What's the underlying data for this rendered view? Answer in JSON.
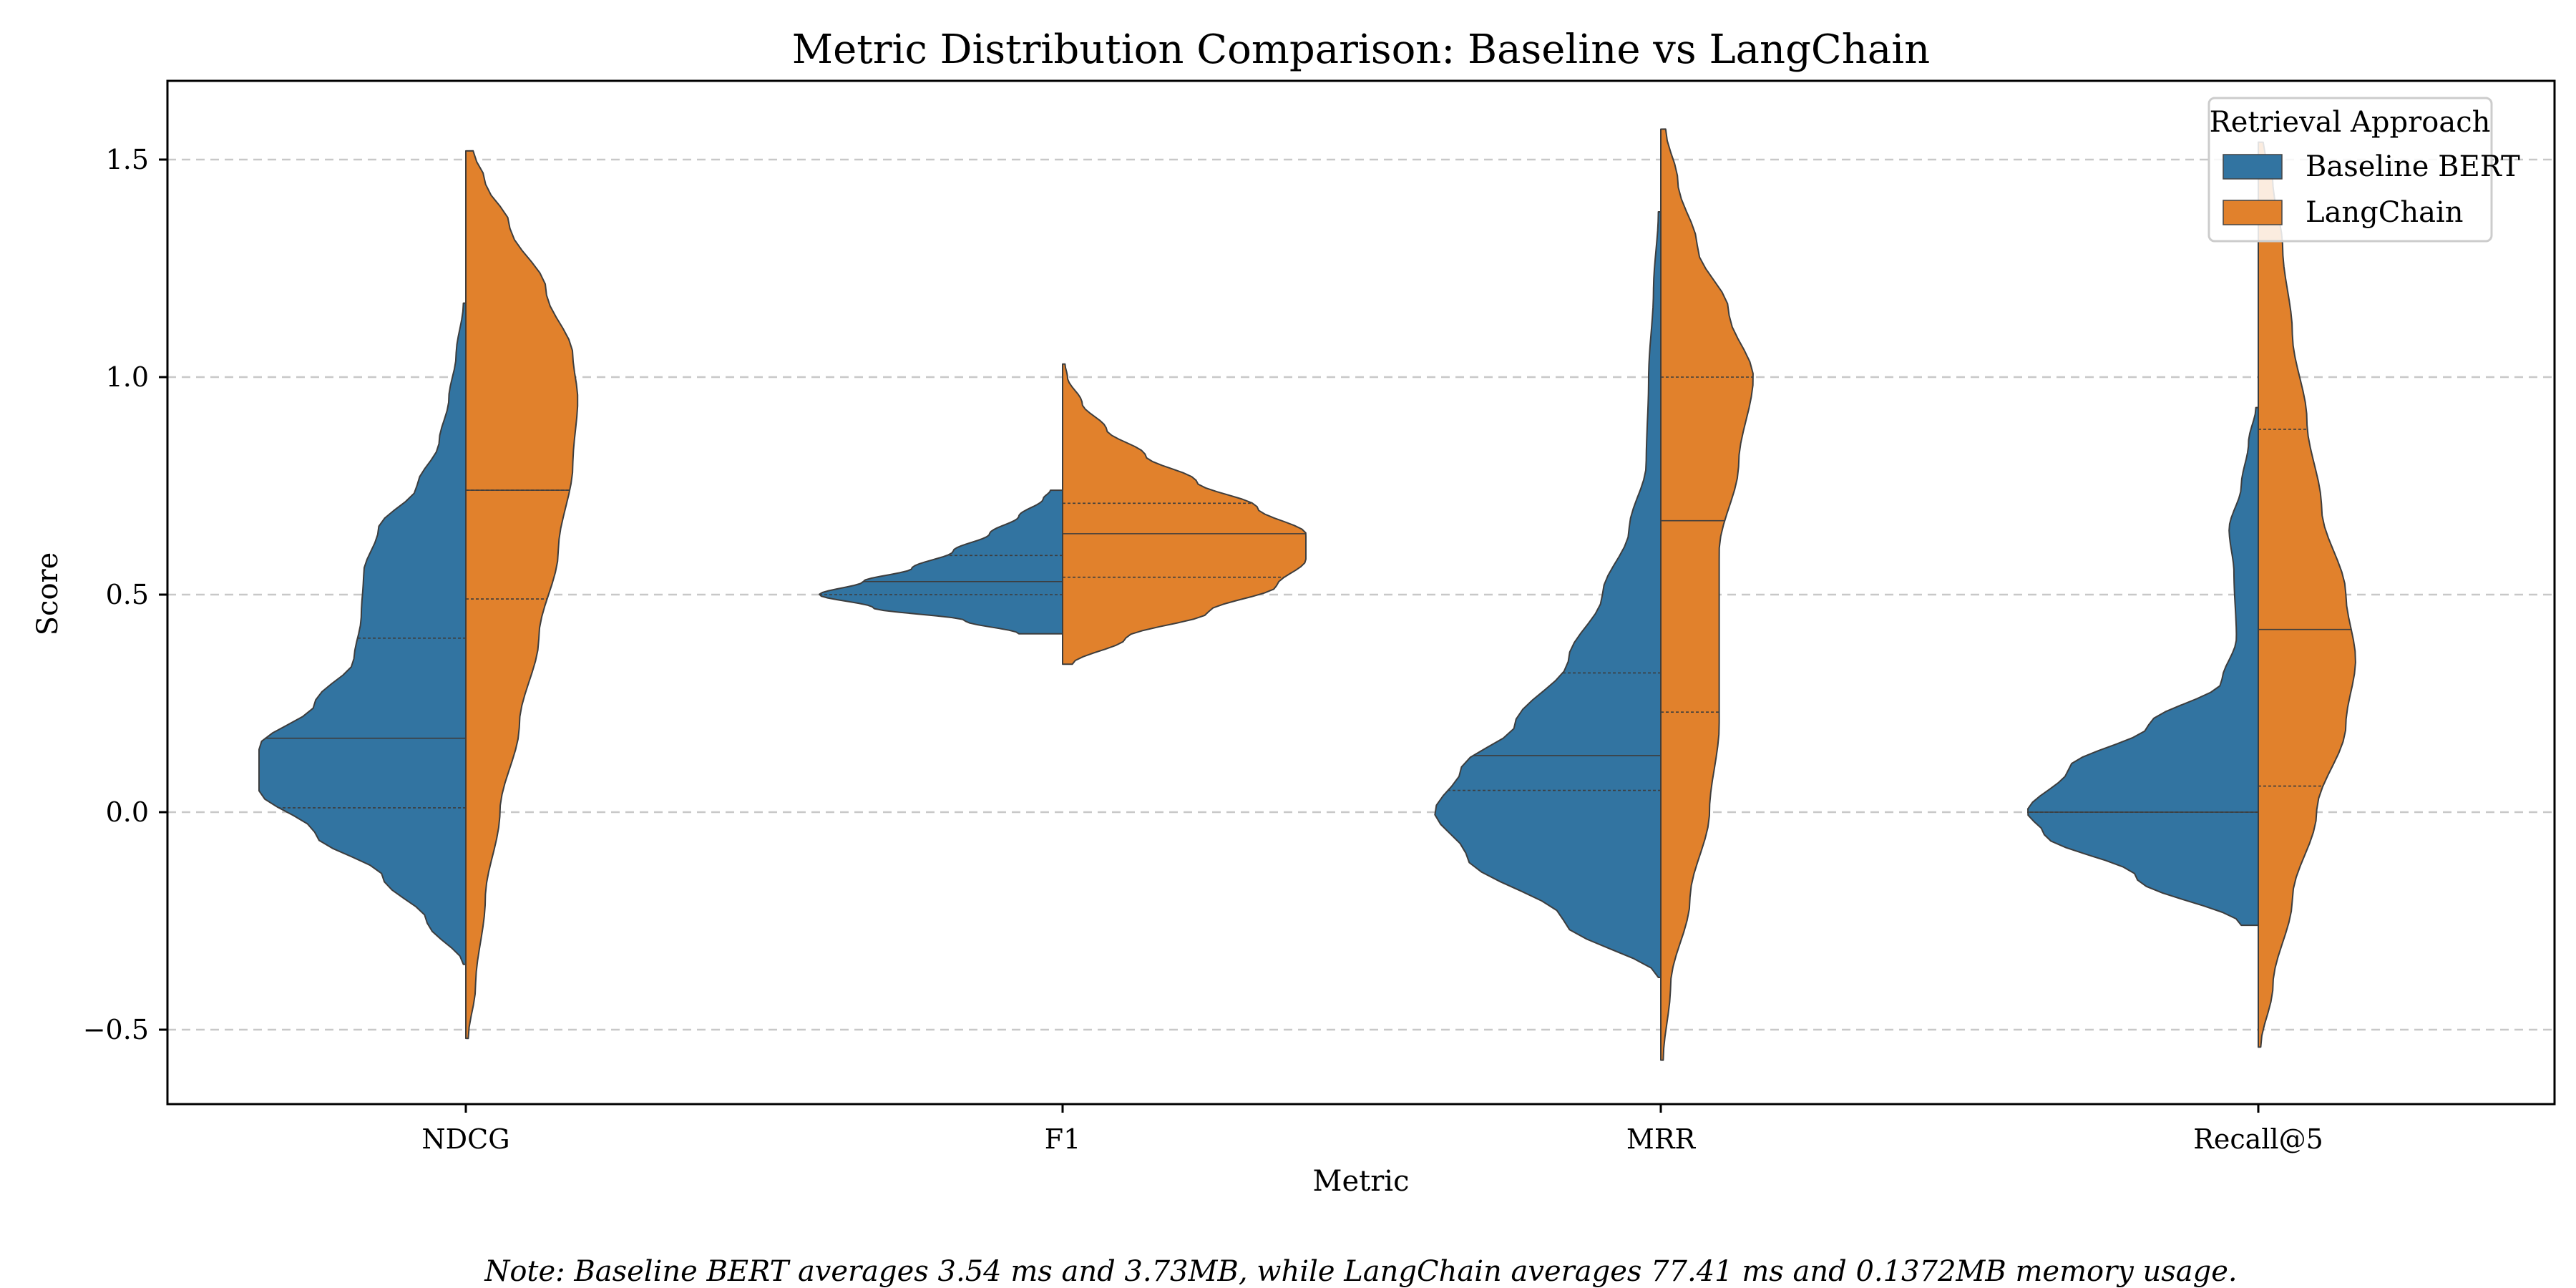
{
  "chart_data": {
    "type": "violin",
    "title": "Metric Distribution Comparison: Baseline vs LangChain",
    "xlabel": "Metric",
    "ylabel": "Score",
    "categories": [
      "NDCG",
      "F1",
      "MRR",
      "Recall@5"
    ],
    "yticks": [
      -0.5,
      0.0,
      0.5,
      1.0,
      1.5
    ],
    "ytick_labels": [
      "−0.5",
      "0.0",
      "0.5",
      "1.0",
      "1.5"
    ],
    "ylim": [
      -0.67,
      1.68
    ],
    "grid": "horizontal dashed",
    "legend": {
      "title": "Retrieval Approach",
      "placement": "top-right",
      "entries": [
        "Baseline BERT",
        "LangChain"
      ]
    },
    "series": [
      {
        "name": "Baseline BERT",
        "color": "#3274a1",
        "side": "left",
        "violins": [
          {
            "category": "NDCG",
            "ymin": -0.35,
            "ymax": 1.17,
            "quartiles": [
              0.01,
              0.17,
              0.4
            ],
            "profile": [
              [
                -0.35,
                0.01
              ],
              [
                -0.25,
                0.16
              ],
              [
                -0.15,
                0.34
              ],
              [
                -0.05,
                0.62
              ],
              [
                0.05,
                0.85
              ],
              [
                0.15,
                0.85
              ],
              [
                0.25,
                0.62
              ],
              [
                0.35,
                0.46
              ],
              [
                0.45,
                0.43
              ],
              [
                0.55,
                0.42
              ],
              [
                0.65,
                0.36
              ],
              [
                0.75,
                0.2
              ],
              [
                0.85,
                0.11
              ],
              [
                0.95,
                0.07
              ],
              [
                1.05,
                0.04
              ],
              [
                1.17,
                0.01
              ]
            ]
          },
          {
            "category": "F1",
            "ymin": 0.41,
            "ymax": 0.74,
            "quartiles": [
              0.5,
              0.53,
              0.59
            ],
            "profile": [
              [
                0.41,
                0.18
              ],
              [
                0.44,
                0.4
              ],
              [
                0.47,
                0.78
              ],
              [
                0.5,
                1.0
              ],
              [
                0.53,
                0.82
              ],
              [
                0.56,
                0.62
              ],
              [
                0.6,
                0.45
              ],
              [
                0.64,
                0.3
              ],
              [
                0.68,
                0.18
              ],
              [
                0.72,
                0.08
              ],
              [
                0.74,
                0.05
              ]
            ]
          },
          {
            "category": "MRR",
            "ymin": -0.38,
            "ymax": 1.38,
            "quartiles": [
              0.05,
              0.13,
              0.32
            ],
            "profile": [
              [
                -0.38,
                0.01
              ],
              [
                -0.25,
                0.4
              ],
              [
                -0.1,
                0.8
              ],
              [
                0.0,
                0.93
              ],
              [
                0.1,
                0.82
              ],
              [
                0.2,
                0.6
              ],
              [
                0.35,
                0.38
              ],
              [
                0.5,
                0.24
              ],
              [
                0.65,
                0.13
              ],
              [
                0.8,
                0.06
              ],
              [
                1.0,
                0.05
              ],
              [
                1.2,
                0.03
              ],
              [
                1.38,
                0.01
              ]
            ]
          },
          {
            "category": "Recall@5",
            "ymin": -0.26,
            "ymax": 0.93,
            "quartiles": [
              0.0,
              0.0,
              0.0
            ],
            "profile": [
              [
                -0.26,
                0.07
              ],
              [
                -0.15,
                0.5
              ],
              [
                -0.05,
                0.88
              ],
              [
                0.0,
                0.95
              ],
              [
                0.1,
                0.78
              ],
              [
                0.2,
                0.45
              ],
              [
                0.3,
                0.15
              ],
              [
                0.4,
                0.09
              ],
              [
                0.55,
                0.1
              ],
              [
                0.65,
                0.12
              ],
              [
                0.75,
                0.07
              ],
              [
                0.85,
                0.04
              ],
              [
                0.93,
                0.01
              ]
            ]
          }
        ]
      },
      {
        "name": "LangChain",
        "color": "#e1812c",
        "side": "right",
        "violins": [
          {
            "category": "NDCG",
            "ymin": -0.52,
            "ymax": 1.52,
            "quartiles": [
              0.49,
              0.74,
              0.74
            ],
            "profile": [
              [
                -0.52,
                0.01
              ],
              [
                -0.4,
                0.04
              ],
              [
                -0.2,
                0.08
              ],
              [
                0.0,
                0.14
              ],
              [
                0.2,
                0.22
              ],
              [
                0.4,
                0.3
              ],
              [
                0.6,
                0.38
              ],
              [
                0.8,
                0.44
              ],
              [
                0.95,
                0.46
              ],
              [
                1.05,
                0.44
              ],
              [
                1.2,
                0.33
              ],
              [
                1.35,
                0.18
              ],
              [
                1.45,
                0.08
              ],
              [
                1.52,
                0.03
              ]
            ]
          },
          {
            "category": "F1",
            "ymin": 0.34,
            "ymax": 1.03,
            "quartiles": [
              0.54,
              0.64,
              0.71
            ],
            "profile": [
              [
                0.34,
                0.04
              ],
              [
                0.4,
                0.26
              ],
              [
                0.46,
                0.6
              ],
              [
                0.52,
                0.88
              ],
              [
                0.58,
                1.0
              ],
              [
                0.64,
                1.0
              ],
              [
                0.7,
                0.8
              ],
              [
                0.76,
                0.55
              ],
              [
                0.82,
                0.34
              ],
              [
                0.88,
                0.18
              ],
              [
                0.94,
                0.08
              ],
              [
                1.0,
                0.02
              ],
              [
                1.03,
                0.01
              ]
            ]
          },
          {
            "category": "MRR",
            "ymin": -0.57,
            "ymax": 1.57,
            "quartiles": [
              0.23,
              0.67,
              1.0
            ],
            "profile": [
              [
                -0.57,
                0.01
              ],
              [
                -0.4,
                0.04
              ],
              [
                -0.2,
                0.12
              ],
              [
                0.0,
                0.2
              ],
              [
                0.2,
                0.24
              ],
              [
                0.4,
                0.24
              ],
              [
                0.6,
                0.24
              ],
              [
                0.8,
                0.32
              ],
              [
                1.0,
                0.38
              ],
              [
                1.15,
                0.28
              ],
              [
                1.3,
                0.15
              ],
              [
                1.45,
                0.07
              ],
              [
                1.57,
                0.02
              ]
            ]
          },
          {
            "category": "Recall@5",
            "ymin": -0.54,
            "ymax": 1.54,
            "quartiles": [
              0.06,
              0.42,
              0.88
            ],
            "profile": [
              [
                -0.54,
                0.01
              ],
              [
                -0.4,
                0.06
              ],
              [
                -0.2,
                0.14
              ],
              [
                0.0,
                0.24
              ],
              [
                0.2,
                0.36
              ],
              [
                0.35,
                0.4
              ],
              [
                0.5,
                0.36
              ],
              [
                0.7,
                0.26
              ],
              [
                0.9,
                0.2
              ],
              [
                1.1,
                0.14
              ],
              [
                1.3,
                0.1
              ],
              [
                1.45,
                0.06
              ],
              [
                1.54,
                0.02
              ]
            ]
          }
        ]
      }
    ],
    "annotations": [
      "Note: Baseline BERT averages 3.54 ms and 3.73MB, while LangChain averages 77.41 ms and 0.1372MB memory usage."
    ]
  }
}
